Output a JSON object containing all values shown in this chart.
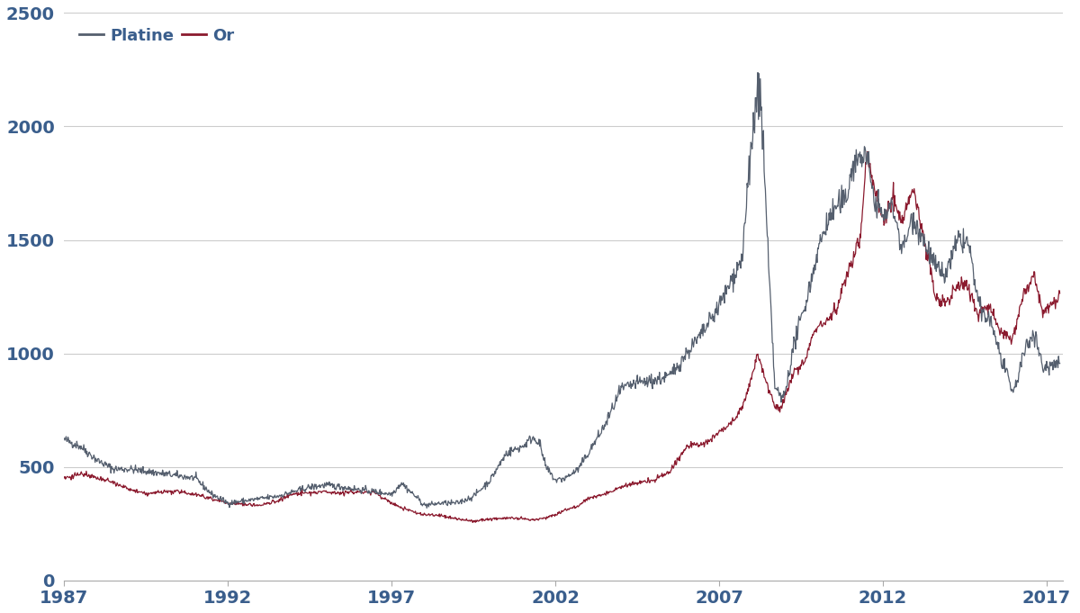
{
  "title": "",
  "platine_color": "#555f6e",
  "or_color": "#8b1a2e",
  "background_color": "#ffffff",
  "grid_color": "#cccccc",
  "ylim": [
    0,
    2500
  ],
  "xlim": [
    1987,
    2017.5
  ],
  "yticks": [
    0,
    500,
    1000,
    1500,
    2000,
    2500
  ],
  "xticks": [
    1987,
    1992,
    1997,
    2002,
    2007,
    2012,
    2017
  ],
  "legend_labels": [
    "Platine",
    "Or"
  ],
  "tick_color": "#3a5e8c",
  "tick_fontsize": 14,
  "platinum_keys": [
    [
      1987.0,
      620
    ],
    [
      1987.5,
      590
    ],
    [
      1988.0,
      530
    ],
    [
      1988.5,
      490
    ],
    [
      1989.0,
      490
    ],
    [
      1989.5,
      480
    ],
    [
      1990.0,
      470
    ],
    [
      1990.5,
      460
    ],
    [
      1991.0,
      450
    ],
    [
      1991.5,
      380
    ],
    [
      1992.0,
      340
    ],
    [
      1992.5,
      350
    ],
    [
      1993.0,
      360
    ],
    [
      1993.5,
      370
    ],
    [
      1994.0,
      390
    ],
    [
      1994.5,
      410
    ],
    [
      1995.0,
      420
    ],
    [
      1995.5,
      410
    ],
    [
      1996.0,
      400
    ],
    [
      1996.5,
      390
    ],
    [
      1997.0,
      380
    ],
    [
      1997.3,
      430
    ],
    [
      1997.5,
      400
    ],
    [
      1997.8,
      360
    ],
    [
      1998.0,
      330
    ],
    [
      1998.5,
      340
    ],
    [
      1999.0,
      340
    ],
    [
      1999.5,
      370
    ],
    [
      2000.0,
      440
    ],
    [
      2000.5,
      560
    ],
    [
      2001.0,
      590
    ],
    [
      2001.3,
      630
    ],
    [
      2001.5,
      610
    ],
    [
      2001.7,
      500
    ],
    [
      2002.0,
      440
    ],
    [
      2002.3,
      450
    ],
    [
      2002.7,
      490
    ],
    [
      2003.0,
      560
    ],
    [
      2003.5,
      680
    ],
    [
      2004.0,
      840
    ],
    [
      2004.5,
      870
    ],
    [
      2005.0,
      880
    ],
    [
      2005.5,
      900
    ],
    [
      2006.0,
      1000
    ],
    [
      2006.5,
      1090
    ],
    [
      2007.0,
      1210
    ],
    [
      2007.3,
      1300
    ],
    [
      2007.7,
      1420
    ],
    [
      2008.0,
      1950
    ],
    [
      2008.15,
      2150
    ],
    [
      2008.3,
      2050
    ],
    [
      2008.5,
      1400
    ],
    [
      2008.7,
      850
    ],
    [
      2008.9,
      800
    ],
    [
      2009.0,
      820
    ],
    [
      2009.3,
      1050
    ],
    [
      2009.6,
      1200
    ],
    [
      2009.9,
      1380
    ],
    [
      2010.0,
      1450
    ],
    [
      2010.3,
      1580
    ],
    [
      2010.6,
      1650
    ],
    [
      2010.9,
      1680
    ],
    [
      2011.0,
      1800
    ],
    [
      2011.3,
      1870
    ],
    [
      2011.5,
      1870
    ],
    [
      2011.7,
      1700
    ],
    [
      2012.0,
      1600
    ],
    [
      2012.3,
      1650
    ],
    [
      2012.6,
      1450
    ],
    [
      2012.9,
      1600
    ],
    [
      2013.0,
      1580
    ],
    [
      2013.3,
      1480
    ],
    [
      2013.6,
      1380
    ],
    [
      2013.9,
      1340
    ],
    [
      2014.0,
      1380
    ],
    [
      2014.3,
      1500
    ],
    [
      2014.6,
      1490
    ],
    [
      2014.9,
      1230
    ],
    [
      2015.0,
      1180
    ],
    [
      2015.3,
      1140
    ],
    [
      2015.6,
      980
    ],
    [
      2015.9,
      850
    ],
    [
      2016.0,
      830
    ],
    [
      2016.3,
      1000
    ],
    [
      2016.6,
      1100
    ],
    [
      2016.9,
      930
    ],
    [
      2017.0,
      940
    ],
    [
      2017.4,
      970
    ]
  ],
  "gold_keys": [
    [
      1987.0,
      450
    ],
    [
      1987.5,
      470
    ],
    [
      1988.0,
      450
    ],
    [
      1988.5,
      430
    ],
    [
      1989.0,
      400
    ],
    [
      1989.5,
      380
    ],
    [
      1990.0,
      390
    ],
    [
      1990.5,
      390
    ],
    [
      1991.0,
      380
    ],
    [
      1991.5,
      360
    ],
    [
      1992.0,
      340
    ],
    [
      1992.5,
      335
    ],
    [
      1993.0,
      330
    ],
    [
      1993.5,
      350
    ],
    [
      1994.0,
      380
    ],
    [
      1994.5,
      385
    ],
    [
      1995.0,
      390
    ],
    [
      1995.5,
      385
    ],
    [
      1996.0,
      390
    ],
    [
      1996.5,
      385
    ],
    [
      1997.0,
      340
    ],
    [
      1997.3,
      320
    ],
    [
      1997.5,
      310
    ],
    [
      1997.8,
      295
    ],
    [
      1998.0,
      290
    ],
    [
      1998.5,
      285
    ],
    [
      1999.0,
      270
    ],
    [
      1999.5,
      260
    ],
    [
      2000.0,
      270
    ],
    [
      2000.5,
      275
    ],
    [
      2001.0,
      270
    ],
    [
      2001.3,
      265
    ],
    [
      2001.5,
      270
    ],
    [
      2001.7,
      275
    ],
    [
      2002.0,
      290
    ],
    [
      2002.3,
      310
    ],
    [
      2002.7,
      330
    ],
    [
      2003.0,
      360
    ],
    [
      2003.5,
      380
    ],
    [
      2004.0,
      410
    ],
    [
      2004.5,
      430
    ],
    [
      2005.0,
      440
    ],
    [
      2005.5,
      480
    ],
    [
      2006.0,
      590
    ],
    [
      2006.5,
      600
    ],
    [
      2007.0,
      650
    ],
    [
      2007.3,
      680
    ],
    [
      2007.7,
      760
    ],
    [
      2008.0,
      900
    ],
    [
      2008.15,
      1000
    ],
    [
      2008.3,
      940
    ],
    [
      2008.5,
      840
    ],
    [
      2008.7,
      760
    ],
    [
      2008.9,
      760
    ],
    [
      2009.0,
      800
    ],
    [
      2009.3,
      920
    ],
    [
      2009.6,
      960
    ],
    [
      2009.9,
      1100
    ],
    [
      2010.0,
      1120
    ],
    [
      2010.3,
      1150
    ],
    [
      2010.6,
      1200
    ],
    [
      2010.9,
      1350
    ],
    [
      2011.0,
      1380
    ],
    [
      2011.3,
      1500
    ],
    [
      2011.5,
      1880
    ],
    [
      2011.7,
      1750
    ],
    [
      2012.0,
      1600
    ],
    [
      2012.3,
      1680
    ],
    [
      2012.6,
      1580
    ],
    [
      2012.9,
      1720
    ],
    [
      2013.0,
      1670
    ],
    [
      2013.3,
      1480
    ],
    [
      2013.6,
      1250
    ],
    [
      2013.9,
      1220
    ],
    [
      2014.0,
      1230
    ],
    [
      2014.3,
      1310
    ],
    [
      2014.6,
      1300
    ],
    [
      2014.9,
      1170
    ],
    [
      2015.0,
      1200
    ],
    [
      2015.3,
      1200
    ],
    [
      2015.6,
      1090
    ],
    [
      2015.9,
      1060
    ],
    [
      2016.0,
      1090
    ],
    [
      2016.3,
      1260
    ],
    [
      2016.6,
      1350
    ],
    [
      2016.9,
      1170
    ],
    [
      2017.0,
      1200
    ],
    [
      2017.4,
      1260
    ]
  ]
}
